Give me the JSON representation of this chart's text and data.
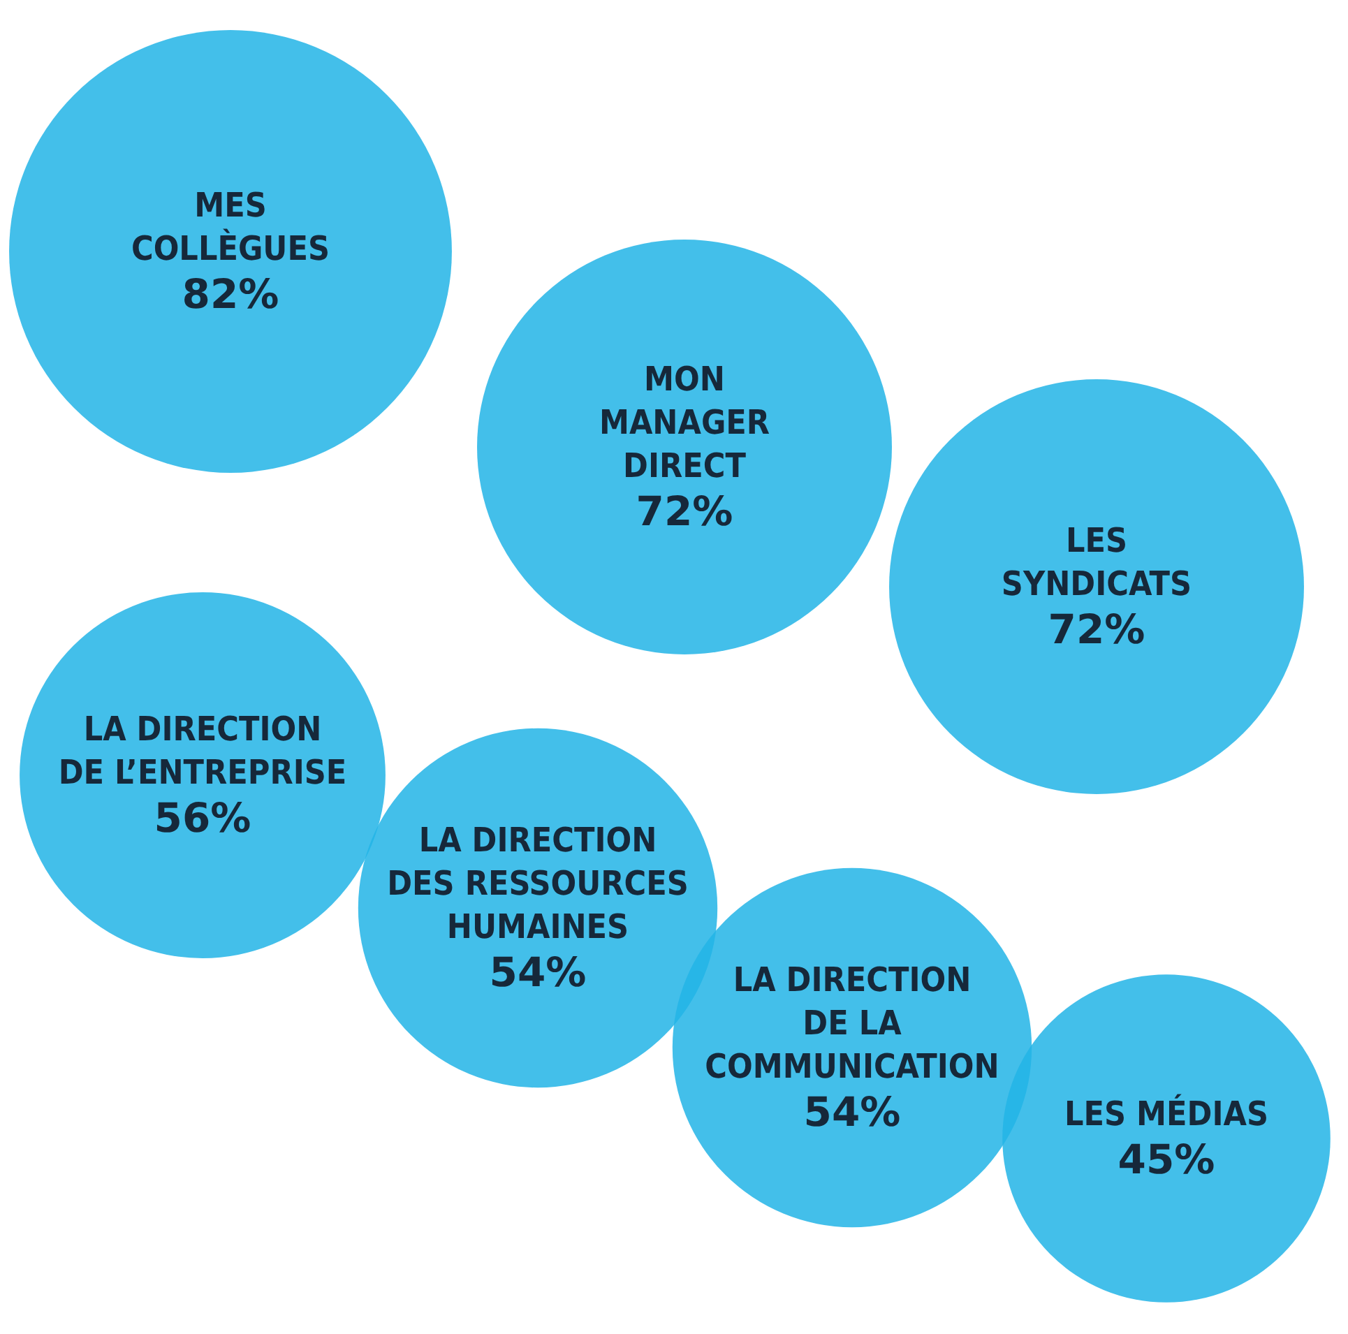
{
  "chart_data": {
    "type": "other",
    "categories": [
      "MES COLLÈGUES",
      "MON MANAGER DIRECT",
      "LES SYNDICATS",
      "LA DIRECTION DE L’ENTREPRISE",
      "LA DIRECTION DES RESSOURCES HUMAINES",
      "LA DIRECTION DE LA COMMUNICATION",
      "LES MÉDIAS"
    ],
    "values": [
      82,
      72,
      72,
      56,
      54,
      54,
      45
    ],
    "value_labels": [
      "82%",
      "72%",
      "72%",
      "56%",
      "54%",
      "54%",
      "45%"
    ],
    "color": "#22b4e6"
  }
}
